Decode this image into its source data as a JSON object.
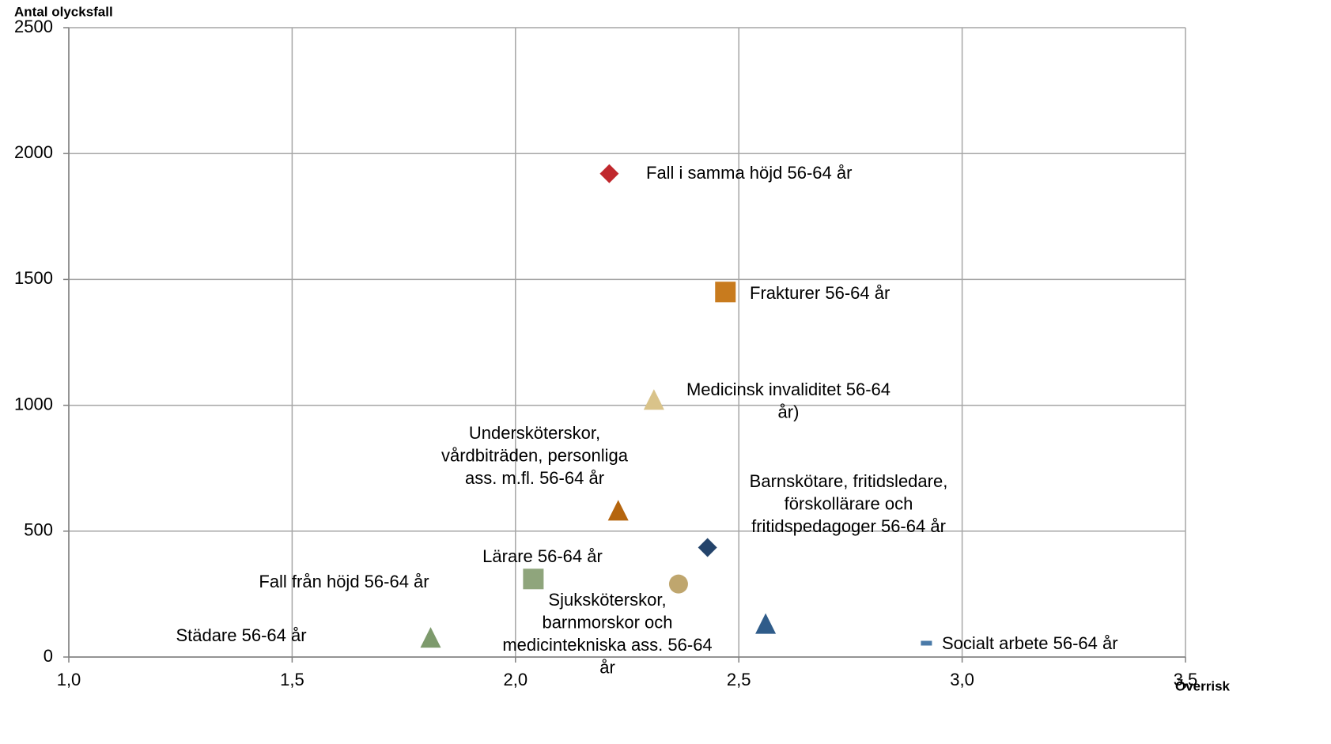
{
  "chart_data": {
    "type": "scatter",
    "y_label": "Antal olycksfall",
    "x_label": "Överrisk",
    "xlim": [
      1.0,
      3.5
    ],
    "ylim": [
      0,
      2500
    ],
    "xticks": [
      {
        "value": 1.0,
        "label": "1,0"
      },
      {
        "value": 1.5,
        "label": "1,5"
      },
      {
        "value": 2.0,
        "label": "2,0"
      },
      {
        "value": 2.5,
        "label": "2,5"
      },
      {
        "value": 3.0,
        "label": "3,0"
      },
      {
        "value": 3.5,
        "label": "3,5"
      }
    ],
    "yticks": [
      0,
      500,
      1000,
      1500,
      2000,
      2500
    ],
    "grid": true,
    "series": [
      {
        "label": [
          "Fall i samma höjd 56-64 år"
        ],
        "marker": "diamond",
        "color": "#c0282d",
        "x": 2.21,
        "y": 1920
      },
      {
        "label": [
          "Frakturer 56-64 år"
        ],
        "marker": "square",
        "color": "#c87b1e",
        "x": 2.47,
        "y": 1450
      },
      {
        "label": [
          "Medicinsk invaliditet 56-64",
          "år)"
        ],
        "marker": "triangle",
        "color": "#d9c38a",
        "x": 2.31,
        "y": 1020
      },
      {
        "label": [
          "Undersköterskor,",
          "vårdbiträden, personliga",
          "ass. m.fl. 56-64 år"
        ],
        "marker": "triangle",
        "color": "#b5650e",
        "x": 2.23,
        "y": 580
      },
      {
        "label": [
          "Barnskötare, fritidsledare,",
          "förskollärare och",
          "fritidspedagoger 56-64 år"
        ],
        "marker": "diamond",
        "color": "#24446b",
        "x": 2.43,
        "y": 435
      },
      {
        "label": [
          "Lärare 56-64 år"
        ],
        "marker": "square",
        "color": "#8fa57c",
        "x": 2.04,
        "y": 310
      },
      {
        "label": [
          "Fall från höjd 56-64 år"
        ],
        "marker": "triangle",
        "color": "#2f5c8a",
        "x": 2.56,
        "y": 130
      },
      {
        "label": [
          "Sjuksköterskor,",
          "barnmorskor och",
          "medicintekniska ass. 56-64",
          "år"
        ],
        "marker": "circle",
        "color": "#bfa66e",
        "x": 2.365,
        "y": 290
      },
      {
        "label": [
          "Städare 56-64 år"
        ],
        "marker": "triangle",
        "color": "#7d9a6c",
        "x": 1.81,
        "y": 75
      },
      {
        "label": [
          "Socialt arbete 56-64 år"
        ],
        "marker": "dash",
        "color": "#4a7aa8",
        "x": 2.92,
        "y": 55
      }
    ]
  }
}
